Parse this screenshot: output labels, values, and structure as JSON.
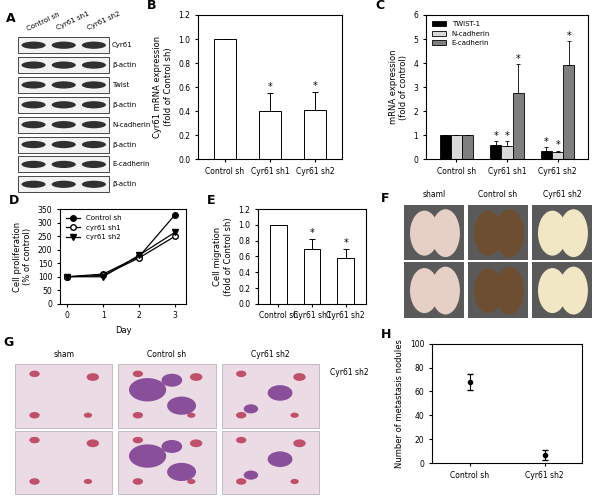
{
  "chart_data": [
    {
      "panel": "B",
      "type": "bar",
      "categories": [
        "Control sh",
        "Cyr61 sh1",
        "Cyr61 sh2"
      ],
      "values": [
        1.0,
        0.4,
        0.41
      ],
      "errors": [
        0,
        0.15,
        0.15
      ],
      "significance": [
        null,
        "*",
        "*"
      ],
      "color": "#ffffff",
      "y_label": "Cyr61 mRNA expression\n(fold of Control sh)",
      "ylim": [
        0,
        1.2
      ],
      "yticks": [
        {
          "value": 0,
          "label": "0.0"
        },
        {
          "value": 0.2,
          "label": "0.2"
        },
        {
          "value": 0.4,
          "label": "0.4"
        },
        {
          "value": 0.6,
          "label": "0.6"
        },
        {
          "value": 0.8,
          "label": "0.8"
        },
        {
          "value": 1.0,
          "label": "1.0"
        },
        {
          "value": 1.2,
          "label": "1.2"
        }
      ]
    },
    {
      "panel": "C",
      "type": "grouped_bar",
      "categories": [
        "Control sh",
        "Cyr61 sh1",
        "Cyr61 sh2"
      ],
      "series": [
        {
          "name": "TWIST-1",
          "color": "#000000",
          "values": [
            1,
            0.6,
            0.35
          ],
          "errors": [
            0,
            0.15,
            0.15
          ],
          "significance": [
            null,
            "*",
            "*"
          ]
        },
        {
          "name": "N-cadherin",
          "color": "#d9d9d9",
          "values": [
            1,
            0.55,
            0.3
          ],
          "errors": [
            0,
            0.2,
            0.05
          ],
          "significance": [
            null,
            "*",
            "*"
          ]
        },
        {
          "name": "E-cadherin",
          "color": "#7f7f7f",
          "values": [
            1,
            2.75,
            3.9
          ],
          "errors": [
            0,
            1.2,
            1.0
          ],
          "significance": [
            null,
            "*",
            "*"
          ]
        }
      ],
      "legend": "upper left",
      "y_label": "mRNA expression\n(fold of control)",
      "ylim": [
        0,
        6
      ],
      "yticks": [
        0,
        1,
        2,
        3,
        4,
        5,
        6
      ]
    },
    {
      "panel": "D",
      "type": "line",
      "x": [
        0,
        1,
        2,
        3
      ],
      "series": [
        {
          "name": "Control sh",
          "color": "#000000",
          "marker": "circle",
          "values": [
            100,
            110,
            175,
            330
          ]
        },
        {
          "name": "cyr61 sh1",
          "color": "#000000",
          "marker": "open_circle",
          "values": [
            100,
            105,
            170,
            250
          ]
        },
        {
          "name": "cyr61 sh2",
          "color": "#000000",
          "marker": "triangle_down",
          "values": [
            100,
            100,
            180,
            265
          ]
        }
      ],
      "legend": "upper left",
      "x_label": "Day",
      "y_label": "Cell proliferation\n(% of control)",
      "xlim": [
        -0.2,
        3.3
      ],
      "xticks": [
        0,
        1,
        2,
        3
      ],
      "ylim": [
        0,
        350
      ],
      "yticks": [
        0,
        50,
        100,
        150,
        200,
        250,
        300,
        350
      ]
    },
    {
      "panel": "E",
      "type": "bar",
      "categories": [
        "Control sh",
        "Cyr61 sh1",
        "Cyr61 sh2"
      ],
      "values": [
        1.0,
        0.7,
        0.58
      ],
      "errors": [
        0,
        0.12,
        0.12
      ],
      "significance": [
        null,
        "*",
        "*"
      ],
      "color": "#ffffff",
      "y_label": "Cell migration\n(fold of Control sh)",
      "ylim": [
        0,
        1.2
      ],
      "yticks": [
        {
          "value": 0,
          "label": "0.0"
        },
        {
          "value": 0.2,
          "label": "0.2"
        },
        {
          "value": 0.4,
          "label": "0.4"
        },
        {
          "value": 0.6,
          "label": "0.6"
        },
        {
          "value": 0.8,
          "label": "0.8"
        },
        {
          "value": 1.0,
          "label": "1.0"
        },
        {
          "value": 1.2,
          "label": "1.2"
        }
      ]
    },
    {
      "panel": "H",
      "type": "scatter",
      "categories": [
        "Control sh",
        "Cyr61 sh2"
      ],
      "values": [
        68,
        7
      ],
      "errors": [
        7,
        4
      ],
      "color": "#000000",
      "marker": "circle",
      "y_label": "Number of metastasis nodules",
      "ylim": [
        0,
        100
      ],
      "yticks": [
        0,
        20,
        40,
        60,
        80,
        100
      ]
    }
  ],
  "blot": {
    "panel": "A",
    "lanes": [
      "Control sh",
      "Cyr61 sh1",
      "Cyr61 sh2"
    ],
    "rows": [
      "Cyr61",
      "β-actin",
      "Twist",
      "β-actin",
      "N-cadherin",
      "β-actin",
      "E-cadherin",
      "β-actin"
    ]
  },
  "photos": {
    "panel": "F",
    "columns": [
      "shaml",
      "Control sh",
      "Cyr61 sh2"
    ]
  },
  "histology": {
    "panel": "G",
    "columns": [
      "sham",
      "Control sh",
      "Cyr61 sh2"
    ],
    "side_label": "Cyr61 sh2"
  }
}
